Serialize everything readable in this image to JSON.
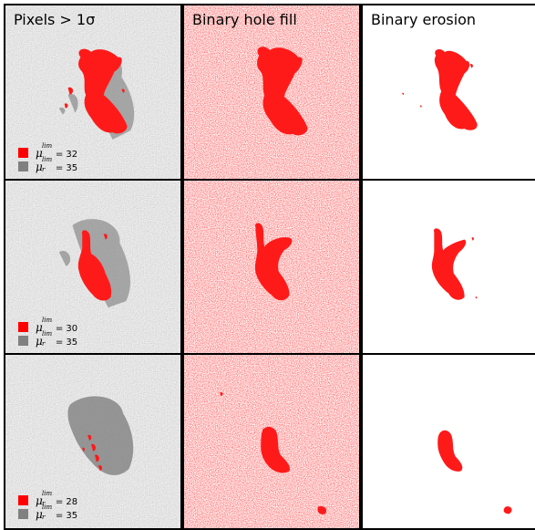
{
  "columns": [
    {
      "title": "Pixels > 1σ"
    },
    {
      "title": "Binary hole fill"
    },
    {
      "title": "Binary erosion"
    }
  ],
  "rows": [
    {
      "legend": [
        {
          "symbol": "μ",
          "sup": "lim",
          "sub": "",
          "value_text": "= 32",
          "color": "#ff0000"
        },
        {
          "symbol": "μ",
          "sup": "lim",
          "sub": "r",
          "value_text": "= 35",
          "color": "#808080"
        }
      ]
    },
    {
      "legend": [
        {
          "symbol": "μ",
          "sup": "lim",
          "sub": "",
          "value_text": "= 30",
          "color": "#ff0000"
        },
        {
          "symbol": "μ",
          "sup": "lim",
          "sub": "r",
          "value_text": "= 35",
          "color": "#808080"
        }
      ]
    },
    {
      "legend": [
        {
          "symbol": "μ",
          "sup": "lim",
          "sub": "r",
          "value_text": "= 28",
          "color": "#ff0000"
        },
        {
          "symbol": "μ",
          "sup": "lim",
          "sub": "r",
          "value_text": "= 35",
          "color": "#808080"
        }
      ]
    }
  ],
  "colors": {
    "mask": "#ff1a1a",
    "noise_light": "#bdbdbd",
    "pink": "#f7b8b8",
    "border": "#000000"
  }
}
